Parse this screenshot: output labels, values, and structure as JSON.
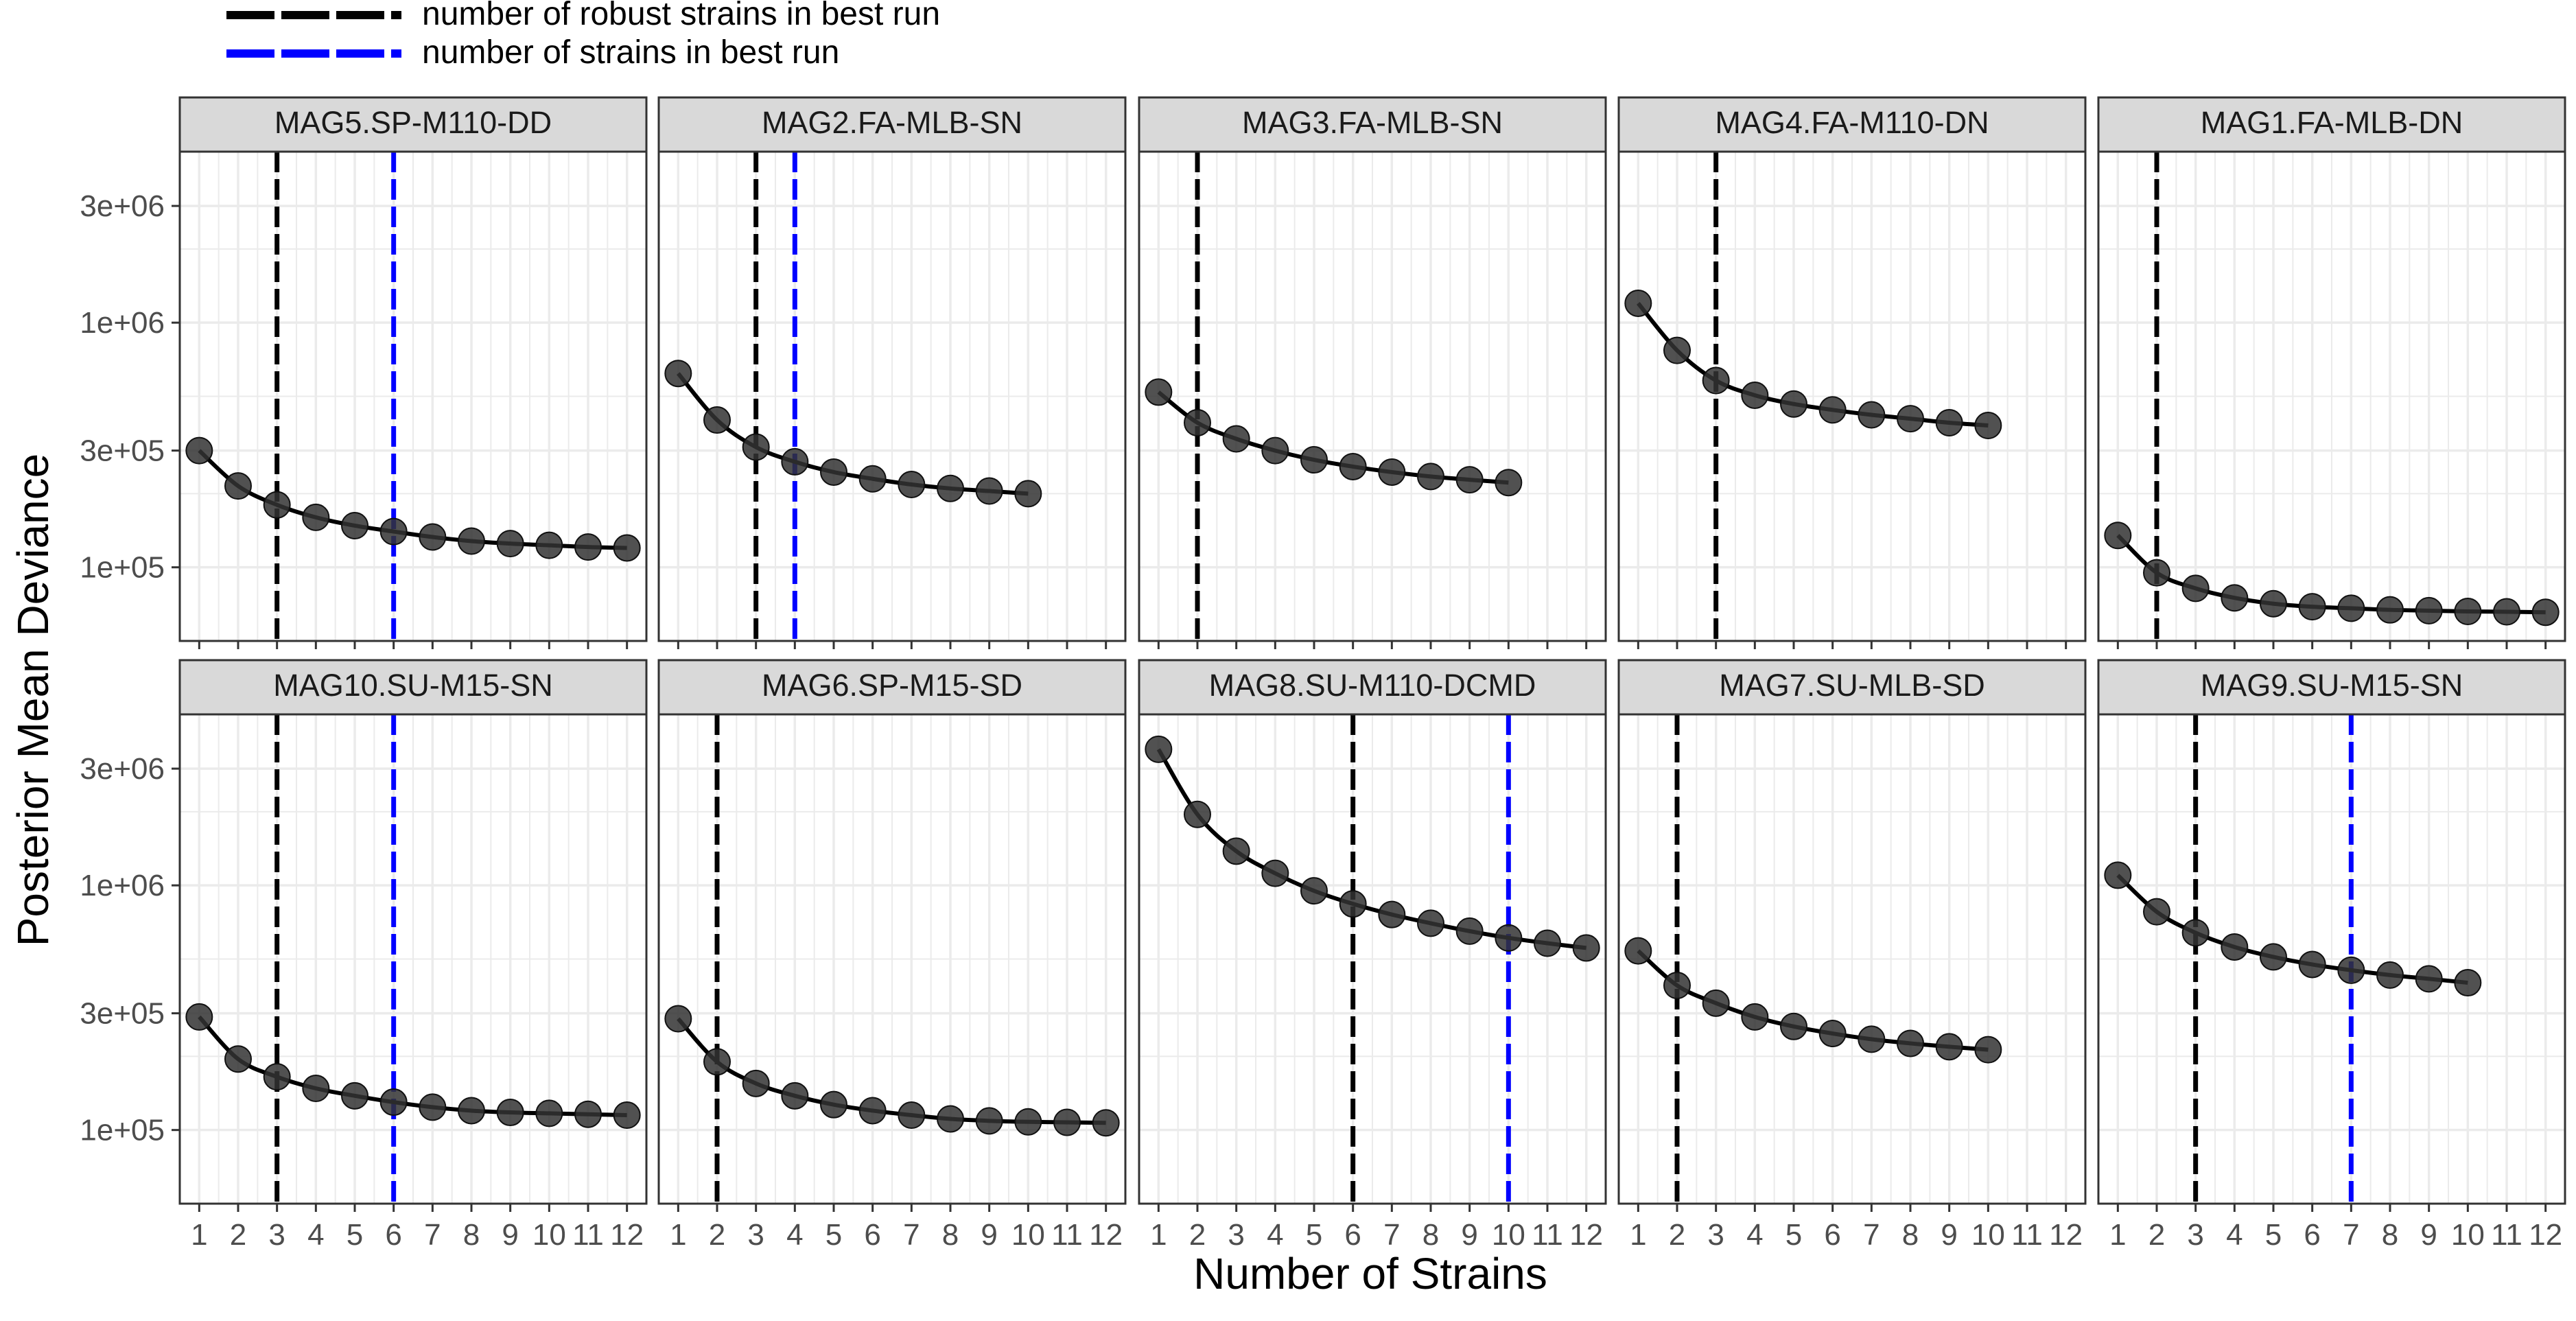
{
  "legend": {
    "items": [
      {
        "label": "number of robust  strains in best run",
        "color": "#000000"
      },
      {
        "label": "number of strains in best run",
        "color": "#0000ff"
      }
    ]
  },
  "axes": {
    "xlabel": "Number of Strains",
    "ylabel": "Posterior Mean Deviance",
    "y_ticks": [
      "1e+05",
      "3e+05",
      "1e+06",
      "3e+06"
    ],
    "x_ticks": [
      "1",
      "2",
      "3",
      "4",
      "5",
      "6",
      "7",
      "8",
      "9",
      "10",
      "11",
      "12"
    ]
  },
  "colors": {
    "robust_line": "#000000",
    "strains_line": "#0000ff",
    "strip_bg": "#d9d9d9",
    "point_fill": "#333333",
    "grid": "#ebebeb"
  },
  "chart_data": {
    "type": "scatter",
    "scale_y": "log10",
    "xlim": [
      0.5,
      12.5
    ],
    "ylim": [
      50000,
      5000000
    ],
    "xlabel": "Number of Strains",
    "ylabel": "Posterior Mean Deviance",
    "legend_position": "top-left",
    "grid": true,
    "panels": [
      {
        "title": "MAG5.SP-M110-DD",
        "robust": 3,
        "strains": 6,
        "x": [
          1,
          2,
          3,
          4,
          5,
          6,
          7,
          8,
          9,
          10,
          11,
          12
        ],
        "y": [
          300000,
          215000,
          180000,
          160000,
          148000,
          140000,
          133000,
          128000,
          125000,
          123000,
          121000,
          120000
        ]
      },
      {
        "title": "MAG2.FA-MLB-SN",
        "robust": 3,
        "strains": 4,
        "x": [
          1,
          2,
          3,
          4,
          5,
          6,
          7,
          8,
          9,
          10
        ],
        "y": [
          620000,
          400000,
          310000,
          270000,
          245000,
          230000,
          218000,
          210000,
          205000,
          200000
        ]
      },
      {
        "title": "MAG3.FA-MLB-SN",
        "robust": 2,
        "strains": null,
        "x": [
          1,
          2,
          3,
          4,
          5,
          6,
          7,
          8,
          9,
          10
        ],
        "y": [
          520000,
          390000,
          335000,
          300000,
          275000,
          258000,
          245000,
          235000,
          228000,
          222000
        ]
      },
      {
        "title": "MAG4.FA-M110-DN",
        "robust": 3,
        "strains": null,
        "x": [
          1,
          2,
          3,
          4,
          5,
          6,
          7,
          8,
          9,
          10
        ],
        "y": [
          1200000,
          770000,
          580000,
          505000,
          465000,
          440000,
          420000,
          405000,
          390000,
          380000
        ]
      },
      {
        "title": "MAG1.FA-MLB-DN",
        "robust": 2,
        "strains": null,
        "x": [
          1,
          2,
          3,
          4,
          5,
          6,
          7,
          8,
          9,
          10,
          11,
          12
        ],
        "y": [
          135000,
          95000,
          82000,
          75000,
          71000,
          69000,
          68000,
          67000,
          66500,
          66000,
          65800,
          65500
        ]
      },
      {
        "title": "MAG10.SU-M15-SN",
        "robust": 3,
        "strains": 6,
        "x": [
          1,
          2,
          3,
          4,
          5,
          6,
          7,
          8,
          9,
          10,
          11,
          12
        ],
        "y": [
          290000,
          195000,
          165000,
          148000,
          138000,
          130000,
          124000,
          120000,
          118000,
          117000,
          116000,
          115000
        ]
      },
      {
        "title": "MAG6.SP-M15-SD",
        "robust": 2,
        "strains": null,
        "x": [
          1,
          2,
          3,
          4,
          5,
          6,
          7,
          8,
          9,
          10,
          11,
          12
        ],
        "y": [
          285000,
          190000,
          155000,
          138000,
          127000,
          120000,
          115000,
          111000,
          109000,
          108000,
          107500,
          107000
        ]
      },
      {
        "title": "MAG8.SU-M110-DCMD",
        "robust": 6,
        "strains": 10,
        "x": [
          1,
          2,
          3,
          4,
          5,
          6,
          7,
          8,
          9,
          10,
          11,
          12
        ],
        "y": [
          3600000,
          1950000,
          1380000,
          1120000,
          950000,
          840000,
          760000,
          700000,
          650000,
          610000,
          580000,
          555000
        ]
      },
      {
        "title": "MAG7.SU-MLB-SD",
        "robust": 2,
        "strains": null,
        "x": [
          1,
          2,
          3,
          4,
          5,
          6,
          7,
          8,
          9,
          10
        ],
        "y": [
          540000,
          390000,
          330000,
          290000,
          265000,
          248000,
          235000,
          226000,
          219000,
          213000
        ]
      },
      {
        "title": "MAG9.SU-M15-SN",
        "robust": 3,
        "strains": 7,
        "x": [
          1,
          2,
          3,
          4,
          5,
          6,
          7,
          8,
          9,
          10
        ],
        "y": [
          1100000,
          780000,
          640000,
          560000,
          510000,
          475000,
          450000,
          430000,
          415000,
          400000
        ]
      }
    ]
  }
}
